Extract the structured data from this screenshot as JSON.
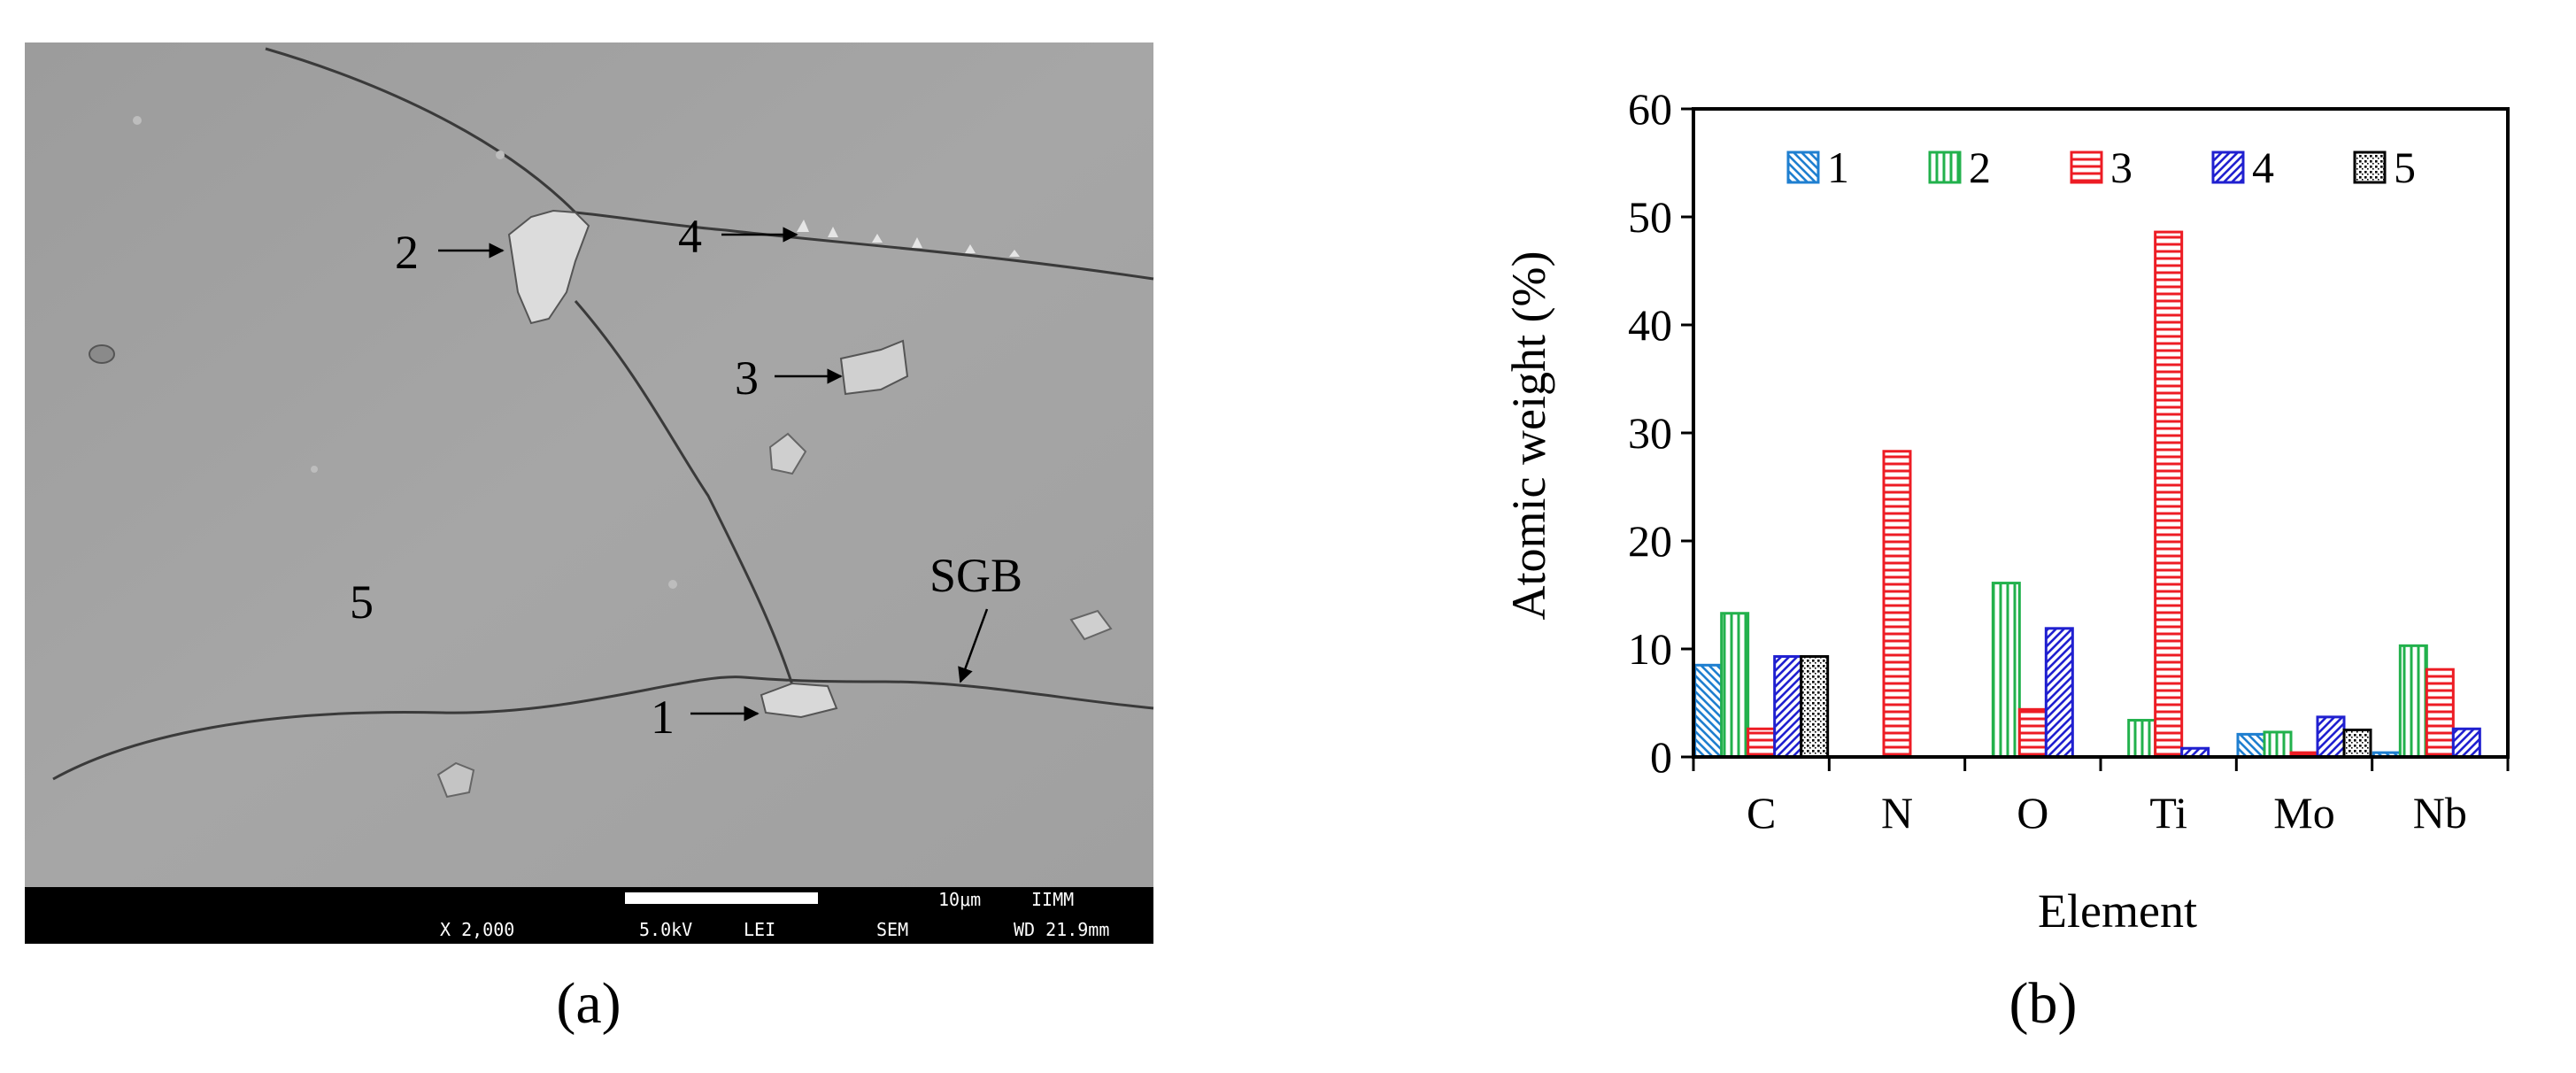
{
  "panels": {
    "a_label": "(a)",
    "b_label": "(b)"
  },
  "micrograph": {
    "markers": [
      "1",
      "2",
      "3",
      "4",
      "5",
      "SGB"
    ],
    "info_bar": {
      "magnification": "X 2,000",
      "voltage": "5.0kV",
      "detector": "LEI",
      "mode": "SEM",
      "scale": "10μm",
      "institute": "IIMM",
      "working_distance": "WD 21.9mm"
    },
    "colors": {
      "background": "#a4a4a4",
      "bar": "#000000",
      "text": "#ffffff"
    }
  },
  "chart_data": {
    "type": "bar",
    "categories": [
      "C",
      "N",
      "O",
      "Ti",
      "Mo",
      "Nb"
    ],
    "series": [
      {
        "name": "1",
        "values": [
          8.5,
          0,
          0,
          0,
          2.1,
          0.4
        ],
        "color": "#1f7fd0",
        "pattern": "diagonal-back"
      },
      {
        "name": "2",
        "values": [
          13.3,
          0,
          16.1,
          3.4,
          2.3,
          10.3
        ],
        "color": "#22b14c",
        "pattern": "vertical"
      },
      {
        "name": "3",
        "values": [
          2.6,
          28.3,
          4.4,
          48.6,
          0.4,
          8.1
        ],
        "color": "#ed1c24",
        "pattern": "horizontal"
      },
      {
        "name": "4",
        "values": [
          9.3,
          0,
          11.9,
          0.8,
          3.7,
          2.6
        ],
        "color": "#2020d0",
        "pattern": "diagonal-forward"
      },
      {
        "name": "5",
        "values": [
          9.3,
          0,
          0,
          0,
          2.5,
          0
        ],
        "color": "#000000",
        "pattern": "dots"
      }
    ],
    "xlabel": "Element",
    "ylabel": "Atomic weight (%)",
    "ylim": [
      0,
      60
    ],
    "yticks": [
      "0",
      "10",
      "20",
      "30",
      "40",
      "50",
      "60"
    ],
    "legend_position": "top"
  }
}
